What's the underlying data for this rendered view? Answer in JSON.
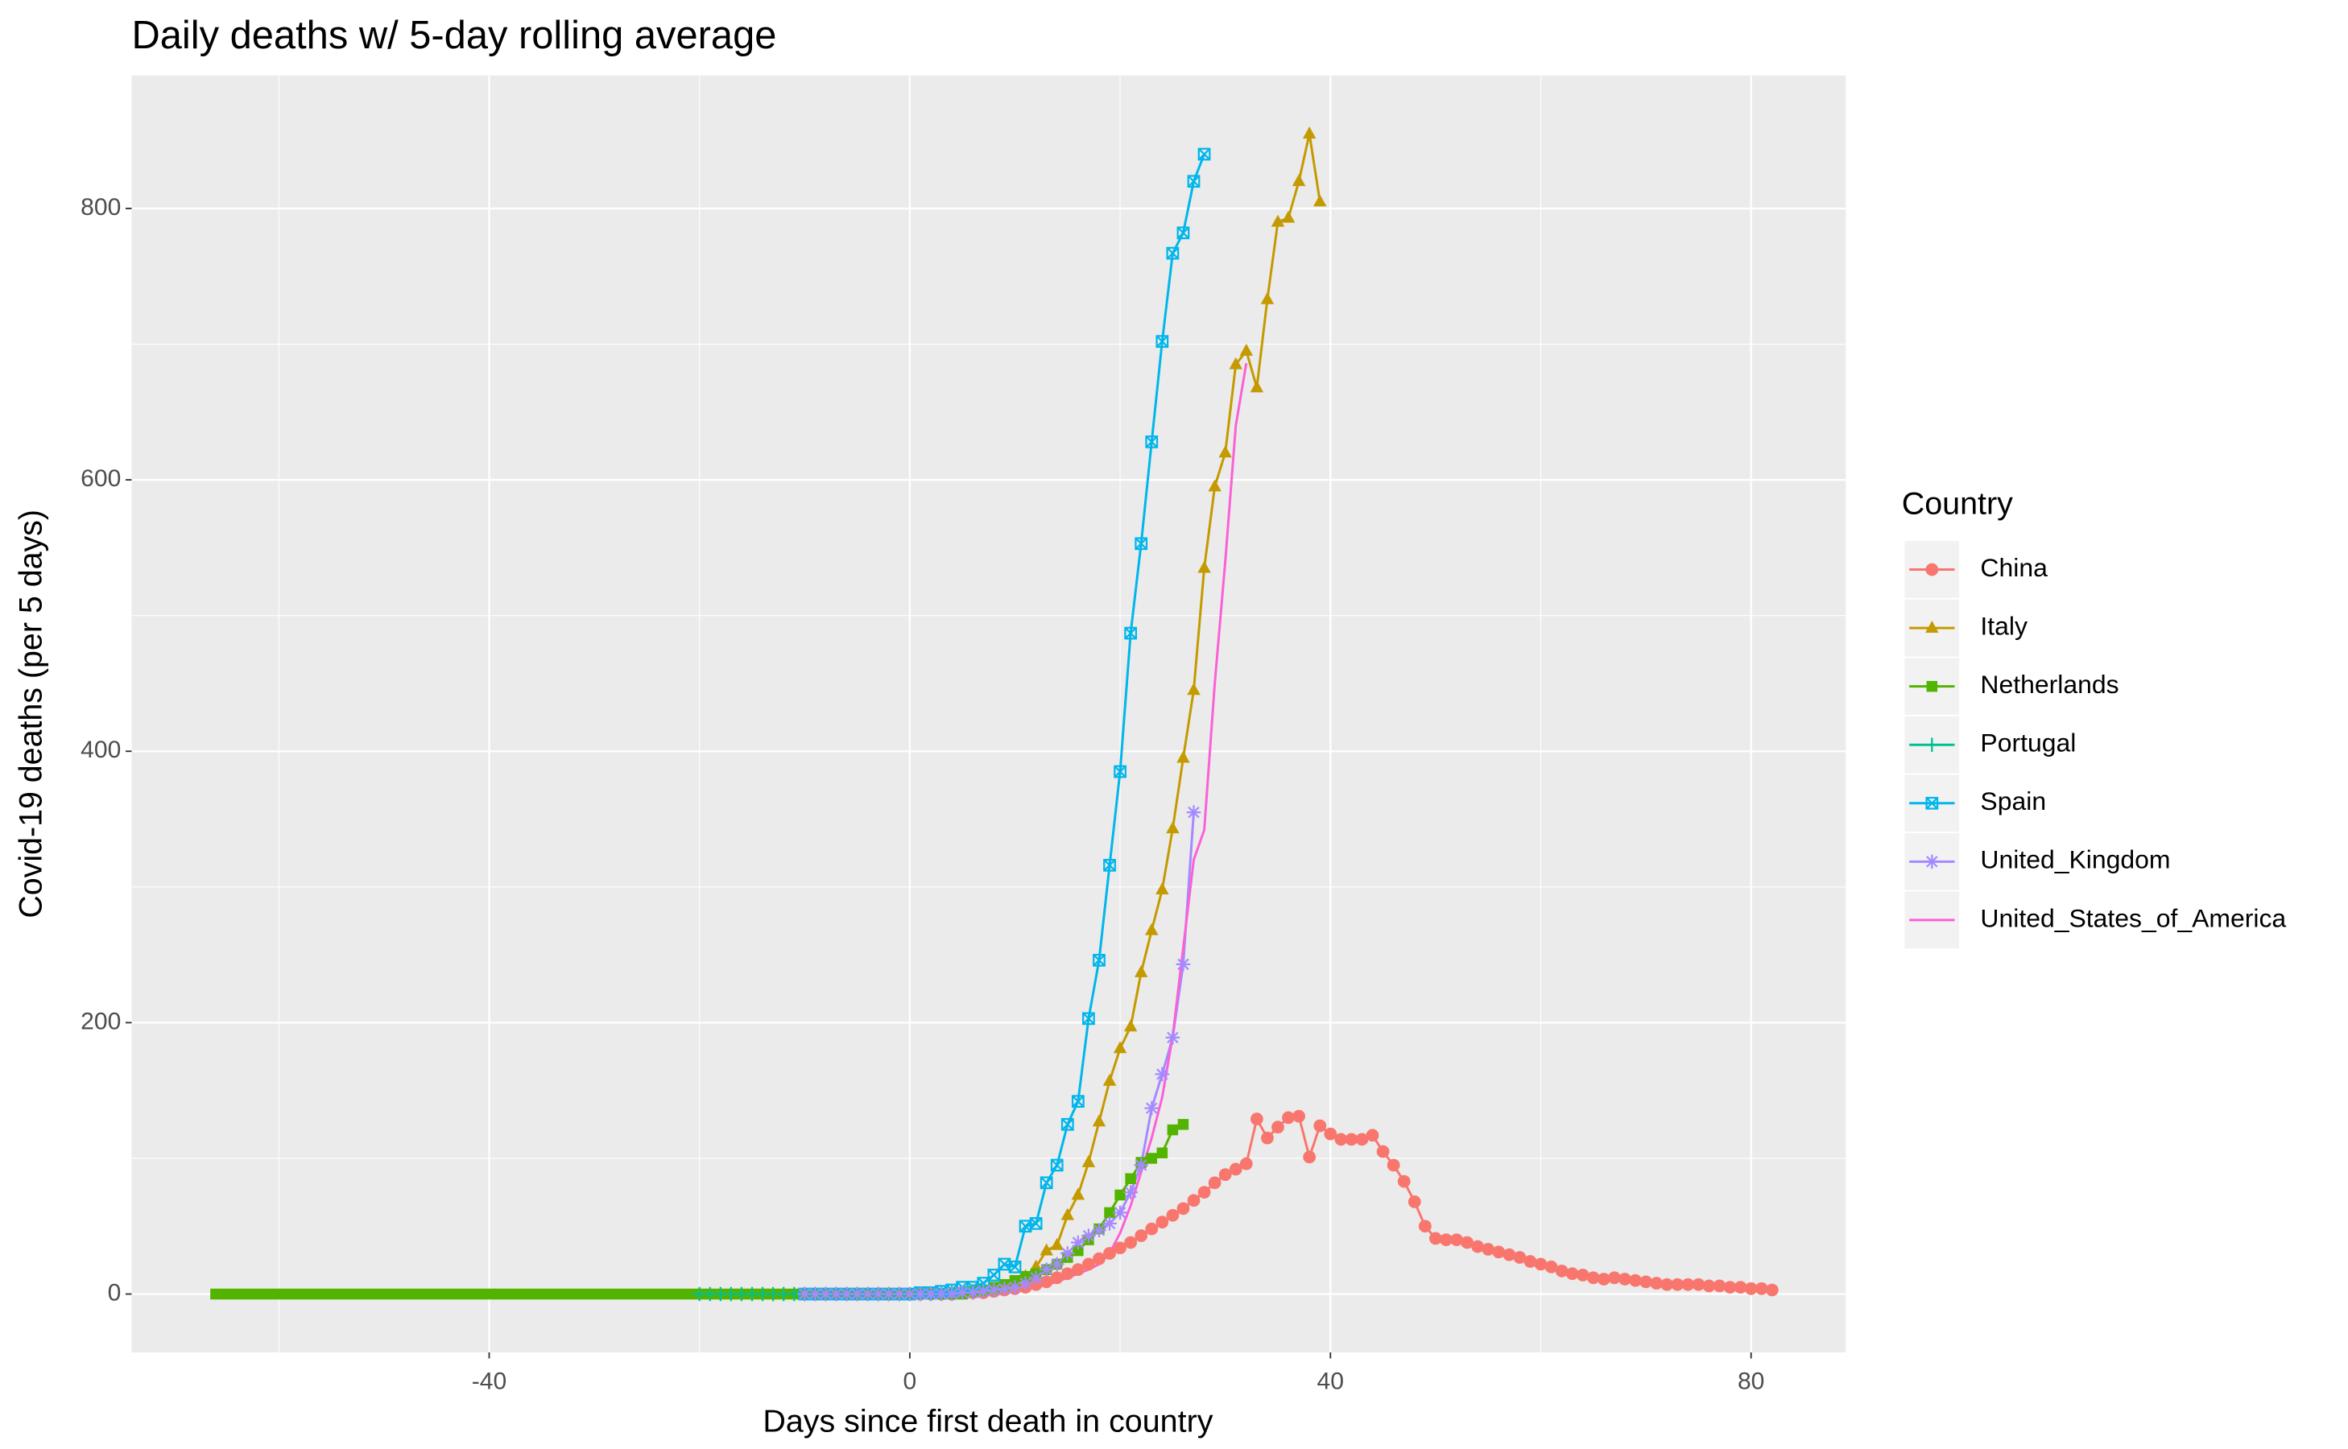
{
  "chart_data": {
    "type": "line",
    "title": "Daily deaths w/ 5-day rolling average",
    "x_label": "Days since first death in country",
    "y_label": "Covid-19 deaths (per 5 days)",
    "legend_title": "Country",
    "legend_position": "right",
    "grid": true,
    "xlim": [
      -74,
      89
    ],
    "ylim": [
      -43,
      898
    ],
    "xticks": [
      -40,
      0,
      40,
      80
    ],
    "yticks": [
      0,
      200,
      400,
      600,
      800
    ],
    "series": [
      {
        "name": "China",
        "color": "#F8766D",
        "shape": "circle",
        "x": [
          0,
          1,
          2,
          3,
          4,
          5,
          6,
          7,
          8,
          9,
          10,
          11,
          12,
          13,
          14,
          15,
          16,
          17,
          18,
          19,
          20,
          21,
          22,
          23,
          24,
          25,
          26,
          27,
          28,
          29,
          30,
          31,
          32,
          33,
          34,
          35,
          36,
          37,
          38,
          39,
          40,
          41,
          42,
          43,
          44,
          45,
          46,
          47,
          48,
          49,
          50,
          51,
          52,
          53,
          54,
          55,
          56,
          57,
          58,
          59,
          60,
          61,
          62,
          63,
          64,
          65,
          66,
          67,
          68,
          69,
          70,
          71,
          72,
          73,
          74,
          75,
          76,
          77,
          78,
          79,
          80,
          81,
          82
        ],
        "values": [
          0,
          0,
          0,
          0,
          0,
          1,
          1,
          1,
          2,
          3,
          4,
          5,
          7,
          9,
          12,
          15,
          18,
          22,
          26,
          30,
          34,
          38,
          43,
          48,
          53,
          58,
          63,
          69,
          75,
          82,
          88,
          92,
          96,
          129,
          115,
          123,
          130,
          131,
          101,
          124,
          118,
          114,
          114,
          114,
          117,
          105,
          95,
          83,
          68,
          50,
          41,
          40,
          40,
          38,
          35,
          33,
          31,
          29,
          27,
          24,
          22,
          20,
          17,
          15,
          14,
          12,
          11,
          12,
          11,
          10,
          9,
          8,
          7,
          7,
          7,
          7,
          6,
          6,
          5,
          5,
          4,
          4,
          3
        ]
      },
      {
        "name": "Italy",
        "color": "#C49A00",
        "shape": "triangle",
        "x": [
          -10,
          -9,
          -8,
          -7,
          -6,
          -5,
          -4,
          -3,
          -2,
          -1,
          0,
          1,
          2,
          3,
          4,
          5,
          6,
          7,
          8,
          9,
          10,
          11,
          12,
          13,
          14,
          15,
          16,
          17,
          18,
          19,
          20,
          21,
          22,
          23,
          24,
          25,
          26,
          27,
          28,
          29,
          30,
          31,
          32,
          33,
          34,
          35,
          36,
          37,
          38,
          39
        ],
        "values": [
          0,
          0,
          0,
          0,
          0,
          0,
          0,
          0,
          0,
          0,
          0,
          0,
          0,
          0,
          0,
          0,
          1,
          2,
          3,
          5,
          8,
          13,
          20,
          32,
          36,
          58,
          73,
          97,
          127,
          157,
          181,
          197,
          237,
          268,
          298,
          343,
          395,
          445,
          535,
          595,
          620,
          685,
          695,
          668,
          733,
          790,
          793,
          820,
          855,
          805
        ]
      },
      {
        "name": "Netherlands",
        "color": "#53B400",
        "shape": "square",
        "x": [
          -66,
          -65,
          -64,
          -63,
          -62,
          -61,
          -60,
          -59,
          -58,
          -57,
          -56,
          -55,
          -54,
          -53,
          -52,
          -51,
          -50,
          -49,
          -48,
          -47,
          -46,
          -45,
          -44,
          -43,
          -42,
          -41,
          -40,
          -39,
          -38,
          -37,
          -36,
          -35,
          -34,
          -33,
          -32,
          -31,
          -30,
          -29,
          -28,
          -27,
          -26,
          -25,
          -24,
          -23,
          -22,
          -21,
          -20,
          -19,
          -18,
          -17,
          -16,
          -15,
          -14,
          -13,
          -12,
          -11,
          -10,
          -9,
          -8,
          -7,
          -6,
          -5,
          -4,
          -3,
          -2,
          -1,
          0,
          1,
          2,
          3,
          4,
          5,
          6,
          7,
          8,
          9,
          10,
          11,
          12,
          13,
          14,
          15,
          16,
          17,
          18,
          19,
          20,
          21,
          22,
          23,
          24,
          25,
          26
        ],
        "values": [
          0,
          0,
          0,
          0,
          0,
          0,
          0,
          0,
          0,
          0,
          0,
          0,
          0,
          0,
          0,
          0,
          0,
          0,
          0,
          0,
          0,
          0,
          0,
          0,
          0,
          0,
          0,
          0,
          0,
          0,
          0,
          0,
          0,
          0,
          0,
          0,
          0,
          0,
          0,
          0,
          0,
          0,
          0,
          0,
          0,
          0,
          0,
          0,
          0,
          0,
          0,
          0,
          0,
          0,
          0,
          0,
          0,
          0,
          0,
          0,
          0,
          0,
          0,
          0,
          0,
          0,
          0,
          0,
          0,
          0,
          0,
          0,
          2,
          3,
          5,
          7,
          10,
          13,
          15,
          18,
          22,
          27,
          32,
          40,
          48,
          60,
          73,
          85,
          97,
          100,
          104,
          121,
          125
        ]
      },
      {
        "name": "Portugal",
        "color": "#00C094",
        "shape": "plus",
        "x": [
          -20,
          -19,
          -18,
          -17,
          -16,
          -15,
          -14,
          -13,
          -12,
          -11,
          -10,
          -9,
          -8,
          -7,
          -6,
          -5,
          -4,
          -3,
          -2,
          -1,
          0,
          1,
          2,
          3,
          4,
          5,
          6,
          7,
          8
        ],
        "values": [
          0,
          0,
          0,
          0,
          0,
          0,
          0,
          0,
          0,
          0,
          0,
          0,
          0,
          0,
          0,
          0,
          0,
          0,
          0,
          0,
          0,
          0,
          0,
          1,
          1,
          1,
          2,
          2,
          3
        ]
      },
      {
        "name": "Spain",
        "color": "#00B6EB",
        "shape": "square-cross",
        "x": [
          -10,
          -9,
          -8,
          -7,
          -6,
          -5,
          -4,
          -3,
          -2,
          -1,
          0,
          1,
          2,
          3,
          4,
          5,
          6,
          7,
          8,
          9,
          10,
          11,
          12,
          13,
          14,
          15,
          16,
          17,
          18,
          19,
          20,
          21,
          22,
          23,
          24,
          25,
          26,
          27,
          28
        ],
        "values": [
          0,
          0,
          0,
          0,
          0,
          0,
          0,
          0,
          0,
          0,
          0,
          1,
          1,
          2,
          3,
          5,
          5,
          8,
          14,
          22,
          20,
          50,
          52,
          82,
          95,
          125,
          142,
          203,
          246,
          316,
          385,
          487,
          553,
          628,
          702,
          767,
          782,
          820,
          840
        ]
      },
      {
        "name": "United_Kingdom",
        "color": "#A58AFF",
        "shape": "asterisk",
        "x": [
          -10,
          -9,
          -8,
          -7,
          -6,
          -5,
          -4,
          -3,
          -2,
          -1,
          0,
          1,
          2,
          3,
          4,
          5,
          6,
          7,
          8,
          9,
          10,
          11,
          12,
          13,
          14,
          15,
          16,
          17,
          18,
          19,
          20,
          21,
          22,
          23,
          24,
          25,
          26,
          27
        ],
        "values": [
          0,
          0,
          0,
          0,
          0,
          0,
          0,
          0,
          0,
          0,
          0,
          0,
          0,
          0,
          0,
          1,
          1,
          2,
          3,
          4,
          5,
          8,
          12,
          18,
          22,
          30,
          38,
          43,
          47,
          52,
          60,
          75,
          95,
          137,
          162,
          189,
          243,
          355
        ]
      },
      {
        "name": "United_States_of_America",
        "color": "#FB61D7",
        "shape": "none",
        "x": [
          -10,
          -9,
          -8,
          -7,
          -6,
          -5,
          -4,
          -3,
          -2,
          -1,
          0,
          1,
          2,
          3,
          4,
          5,
          6,
          7,
          8,
          9,
          10,
          11,
          12,
          13,
          14,
          15,
          16,
          17,
          18,
          19,
          20,
          21,
          22,
          23,
          24,
          25,
          26,
          27,
          28,
          29,
          30,
          31,
          32
        ],
        "values": [
          0,
          0,
          0,
          0,
          0,
          0,
          0,
          0,
          0,
          0,
          0,
          0,
          0,
          0,
          0,
          0,
          0,
          0,
          0,
          0,
          2,
          3,
          5,
          7,
          9,
          12,
          15,
          18,
          22,
          30,
          45,
          65,
          90,
          115,
          145,
          190,
          255,
          320,
          342,
          450,
          540,
          640,
          686
        ]
      }
    ]
  }
}
